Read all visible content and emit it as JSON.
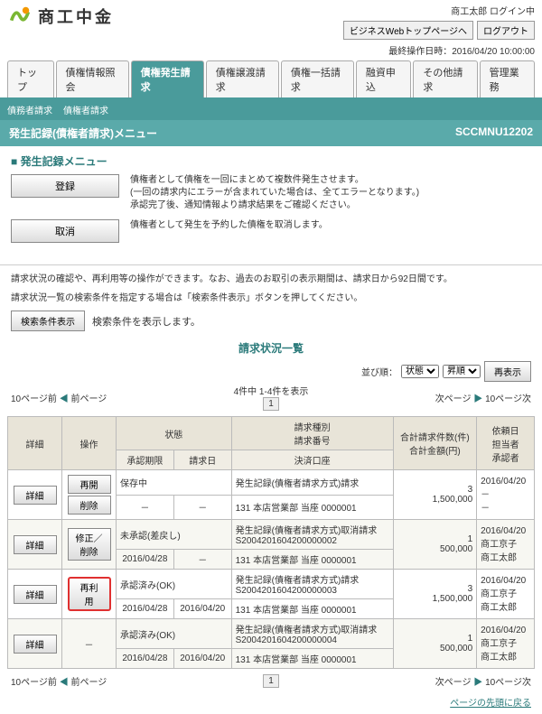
{
  "header": {
    "loginStatus": "商工太郎 ログイン中",
    "btnTop": "ビジネスWebトップページへ",
    "btnLogout": "ログアウト",
    "lastOp": "最終操作日時：2016/04/20 10:00:00",
    "brand": "商工中金"
  },
  "tabs": [
    "トップ",
    "債権情報照会",
    "債権発生請求",
    "債権譲渡請求",
    "債権一括請求",
    "融資申込",
    "その他請求",
    "管理業務"
  ],
  "activeTab": 2,
  "subtabs": [
    "債務者請求",
    "債権者請求"
  ],
  "page": {
    "title": "発生記録(債権者請求)メニュー",
    "code": "SCCMNU12202"
  },
  "menuTitle": "発生記録メニュー",
  "menu": [
    {
      "btn": "登録",
      "desc": "債権者として債権を一回にまとめて複数件発生させます。\n(一回の請求内にエラーが含まれていた場合は、全てエラーとなります。)\n承認完了後、通知情報より請求結果をご確認ください。"
    },
    {
      "btn": "取消",
      "desc": "債権者として発生を予約した債権を取消します。"
    }
  ],
  "notes": [
    "請求状況の確認や、再利用等の操作ができます。なお、過去のお取引の表示期間は、請求日から92日間です。",
    "請求状況一覧の検索条件を指定する場合は「検索条件表示」ボタンを押してください。"
  ],
  "searchBtn": "検索条件表示",
  "searchDesc": "検索条件を表示します。",
  "listTitle": "請求状況一覧",
  "sort": {
    "label": "並び順：",
    "opt1": "状態",
    "opt2": "昇順",
    "btn": "再表示"
  },
  "pager": {
    "prev10": "10ページ前",
    "prev": "前ページ",
    "info": "4件中 1-4件を表示",
    "page": "1",
    "next": "次ページ",
    "next10": "10ページ次"
  },
  "thead": {
    "c1": "詳細",
    "c2": "操作",
    "c3": "状態",
    "c4": "請求種別\n請求番号",
    "c5": "合計請求件数(件)\n合計金額(円)",
    "c6": "依頼日\n担当者\n承認者",
    "c3a": "承認期限",
    "c3b": "請求日",
    "c4a": "決済口座"
  },
  "rows": [
    {
      "det": "詳細",
      "ops": [
        "再開",
        "削除"
      ],
      "st": "保存中",
      "lim": "－",
      "rq": "－",
      "type": "発生記録(債権者請求方式)請求",
      "acct": "131 本店営業部 当座 0000001",
      "cnt": "3",
      "amt": "1,500,000",
      "d": "2016/04/20",
      "p": "－",
      "a": "－"
    },
    {
      "det": "詳細",
      "ops": [
        "修正／削除"
      ],
      "st": "未承認(差戻し)",
      "lim": "2016/04/28",
      "rq": "－",
      "type": "発生記録(債権者請求方式)取消請求\nS2004201604200000002",
      "acct": "131 本店営業部 当座 0000001",
      "cnt": "1",
      "amt": "500,000",
      "d": "2016/04/20",
      "p": "商工京子",
      "a": "商工太郎"
    },
    {
      "det": "詳細",
      "ops": [
        "再利用"
      ],
      "opHl": true,
      "st": "承認済み(OK)",
      "lim": "2016/04/28",
      "rq": "2016/04/20",
      "type": "発生記録(債権者請求方式)請求\nS2004201604200000003",
      "acct": "131 本店営業部 当座 0000001",
      "cnt": "3",
      "amt": "1,500,000",
      "d": "2016/04/20",
      "p": "商工京子",
      "a": "商工太郎"
    },
    {
      "det": "詳細",
      "ops": [
        "－"
      ],
      "noOp": true,
      "st": "承認済み(OK)",
      "lim": "2016/04/28",
      "rq": "2016/04/20",
      "type": "発生記録(債権者請求方式)取消請求\nS2004201604200000004",
      "acct": "131 本店営業部 当座 0000001",
      "cnt": "1",
      "amt": "500,000",
      "d": "2016/04/20",
      "p": "商工京子",
      "a": "商工太郎"
    }
  ],
  "footLink": "ページの先頭に戻る"
}
